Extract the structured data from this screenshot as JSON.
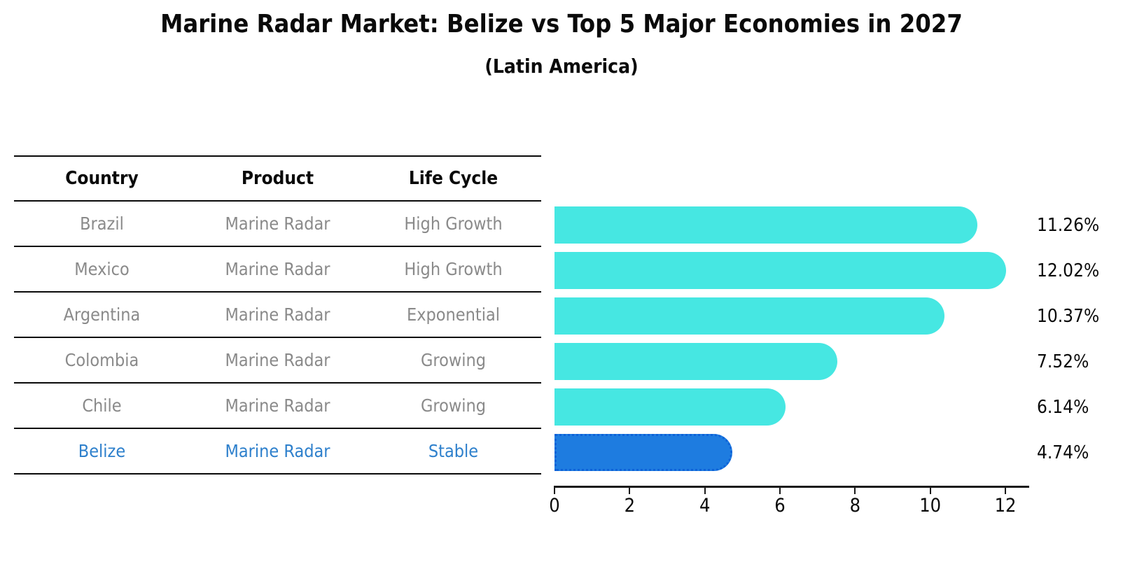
{
  "title": "Marine Radar Market: Belize vs Top 5 Major Economies in 2027",
  "subtitle": "(Latin America)",
  "table": {
    "headers": [
      "Country",
      "Product",
      "Life Cycle"
    ],
    "rows": [
      {
        "country": "Brazil",
        "product": "Marine Radar",
        "life_cycle": "High Growth",
        "highlight": false
      },
      {
        "country": "Mexico",
        "product": "Marine Radar",
        "life_cycle": "High Growth",
        "highlight": false
      },
      {
        "country": "Argentina",
        "product": "Marine Radar",
        "life_cycle": "Exponential",
        "highlight": false
      },
      {
        "country": "Colombia",
        "product": "Marine Radar",
        "life_cycle": "Growing",
        "highlight": false
      },
      {
        "country": "Chile",
        "product": "Marine Radar",
        "life_cycle": "Growing",
        "highlight": false
      },
      {
        "country": "Belize",
        "product": "Marine Radar",
        "life_cycle": "Stable",
        "highlight": true
      }
    ]
  },
  "chart_data": {
    "type": "bar",
    "orientation": "horizontal",
    "title": "Marine Radar Market: Belize vs Top 5 Major Economies in 2027 (Latin America)",
    "categories": [
      "Brazil",
      "Mexico",
      "Argentina",
      "Colombia",
      "Chile",
      "Belize"
    ],
    "values": [
      11.26,
      12.02,
      10.37,
      7.52,
      6.14,
      4.74
    ],
    "value_labels": [
      "11.26%",
      "12.02%",
      "10.37%",
      "7.52%",
      "6.14%",
      "4.74%"
    ],
    "highlight_index": 5,
    "xlabel": "",
    "ylabel": "",
    "xlim": [
      0,
      12.65
    ],
    "xticks": [
      0,
      2,
      4,
      6,
      8,
      10,
      12
    ],
    "grid": false,
    "legend": false,
    "bar_color": "#46e7e2",
    "highlight_bar_color": "#1e7ce0",
    "highlight_border_color": "#0e62d8",
    "highlight_text_color": "#2e80cc"
  }
}
